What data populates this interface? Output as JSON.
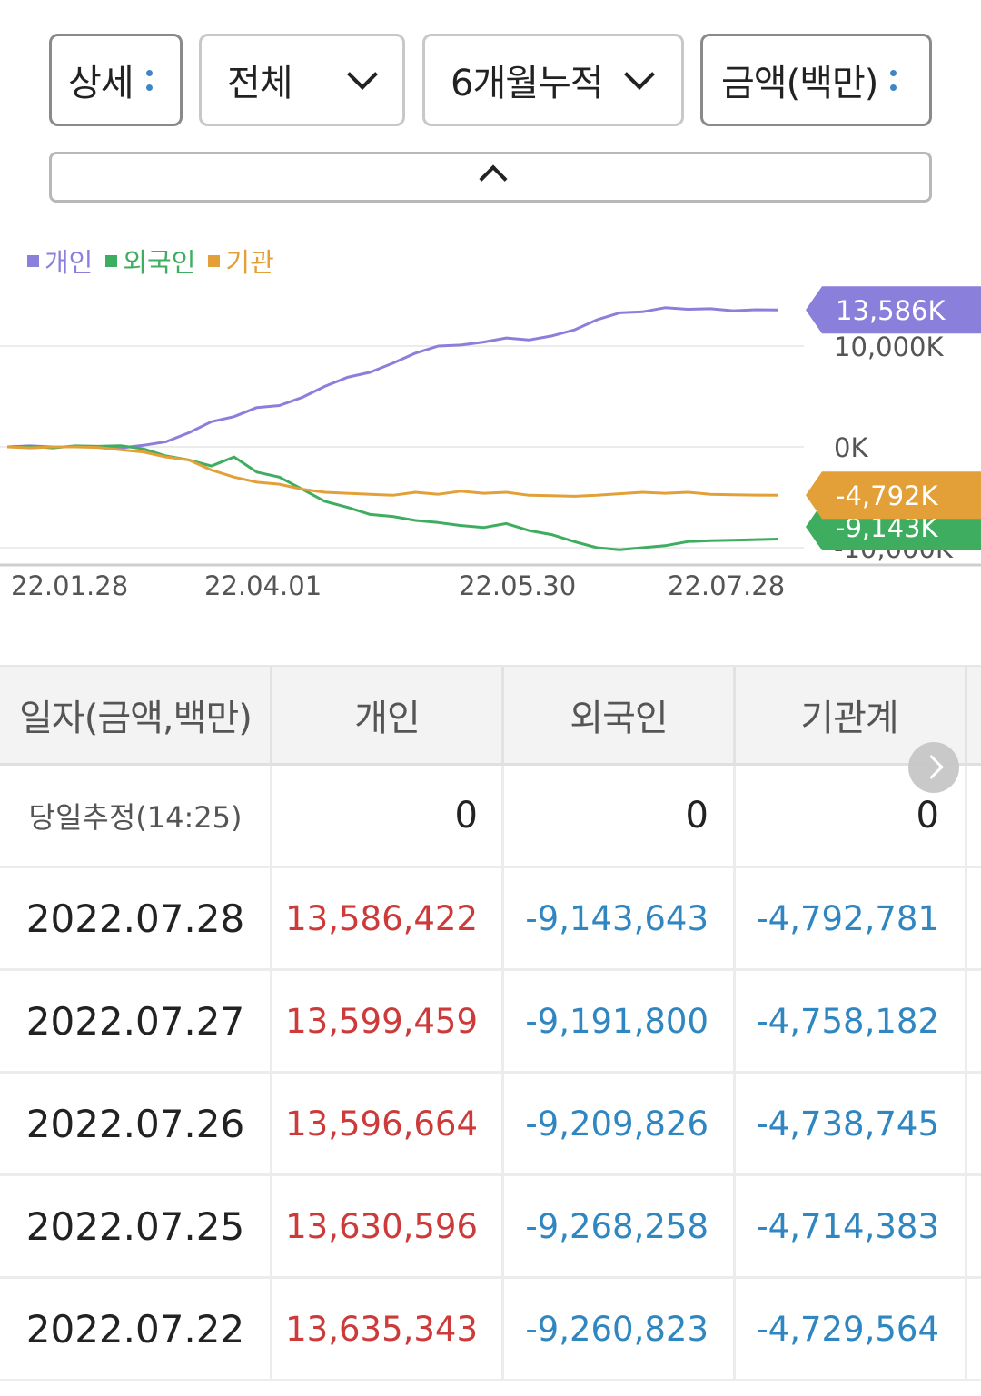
{
  "filters": {
    "detail": "상세",
    "scope": "전체",
    "period": "6개월누적",
    "unit": "금액(백만)"
  },
  "legend": [
    {
      "label": "개인",
      "color": "#8b7fdc"
    },
    {
      "label": "외국인",
      "color": "#3fad5f"
    },
    {
      "label": "기관",
      "color": "#e3a038"
    }
  ],
  "chart_data": {
    "type": "line",
    "x_ticks": [
      "22.01.28",
      "22.04.01",
      "22.05.30",
      "22.07.28"
    ],
    "y_ticks": [
      "10,000K",
      "0K",
      "-10,000K"
    ],
    "ylim": [
      -10000,
      13586
    ],
    "grid": true,
    "series": [
      {
        "name": "개인",
        "color": "#8b7fdc",
        "end_label": "13,586K",
        "values": [
          0,
          100,
          0,
          0,
          20,
          -100,
          150,
          500,
          1400,
          2500,
          3000,
          3900,
          4100,
          4900,
          6000,
          6900,
          7400,
          8300,
          9300,
          10000,
          10100,
          10400,
          10800,
          10600,
          11000,
          11600,
          12600,
          13300,
          13400,
          13800,
          13650,
          13700,
          13500,
          13600,
          13586
        ]
      },
      {
        "name": "외국인",
        "color": "#3fad5f",
        "end_label": "-9,143K",
        "values": [
          0,
          50,
          -100,
          100,
          50,
          120,
          -200,
          -900,
          -1300,
          -1900,
          -1000,
          -2500,
          -3000,
          -4200,
          -5400,
          -6000,
          -6700,
          -6900,
          -7300,
          -7500,
          -7800,
          -8000,
          -7600,
          -8300,
          -8700,
          -9400,
          -10000,
          -10200,
          -10000,
          -9800,
          -9400,
          -9300,
          -9250,
          -9200,
          -9143
        ]
      },
      {
        "name": "기관",
        "color": "#e3a038",
        "end_label": "-4,792K",
        "values": [
          0,
          -100,
          0,
          0,
          -50,
          -300,
          -500,
          -1000,
          -1300,
          -2300,
          -3000,
          -3500,
          -3700,
          -4200,
          -4500,
          -4600,
          -4700,
          -4800,
          -4500,
          -4700,
          -4400,
          -4600,
          -4500,
          -4800,
          -4850,
          -4900,
          -4800,
          -4650,
          -4500,
          -4600,
          -4500,
          -4700,
          -4750,
          -4780,
          -4792
        ]
      }
    ]
  },
  "table": {
    "headers": [
      "일자(금액,백만)",
      "개인",
      "외국인",
      "기관계"
    ],
    "estimate": {
      "label": "당일추정(14:25)",
      "values": [
        "0",
        "0",
        "0"
      ]
    },
    "rows": [
      {
        "date": "2022.07.28",
        "individual": "13,586,422",
        "foreign": "-9,143,643",
        "institution": "-4,792,781"
      },
      {
        "date": "2022.07.27",
        "individual": "13,599,459",
        "foreign": "-9,191,800",
        "institution": "-4,758,182"
      },
      {
        "date": "2022.07.26",
        "individual": "13,596,664",
        "foreign": "-9,209,826",
        "institution": "-4,738,745"
      },
      {
        "date": "2022.07.25",
        "individual": "13,630,596",
        "foreign": "-9,268,258",
        "institution": "-4,714,383"
      },
      {
        "date": "2022.07.22",
        "individual": "13,635,343",
        "foreign": "-9,260,823",
        "institution": "-4,729,564"
      }
    ]
  }
}
